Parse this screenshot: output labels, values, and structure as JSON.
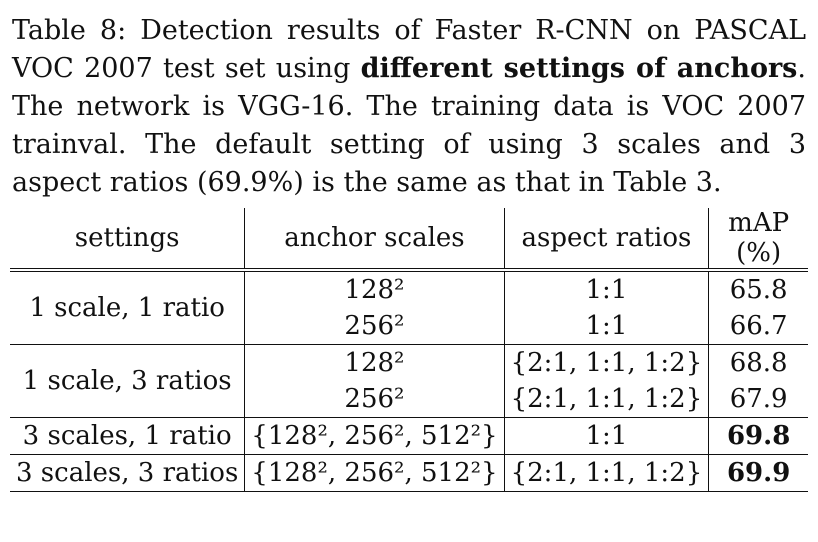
{
  "caption": {
    "label": "Table 8:",
    "text_before": "Detection results of Faster R-CNN on PASCAL VOC 2007 test set using",
    "emphasis": "different settings of anchors",
    "text_after": ". The network is VGG-16. The training data is VOC 2007 trainval. The default setting of using 3 scales and 3 aspect ratios (69.9%) is the same as that in Table 3."
  },
  "table": {
    "header": [
      "settings",
      "anchor scales",
      "aspect ratios",
      "mAP (%)"
    ],
    "groups": [
      {
        "setting": "1 scale, 1 ratio",
        "rows": [
          [
            "128²",
            "1:1",
            "65.8"
          ],
          [
            "256²",
            "1:1",
            "66.7"
          ]
        ]
      },
      {
        "setting": "1 scale, 3 ratios",
        "rows": [
          [
            "128²",
            "{2:1, 1:1, 1:2}",
            "68.8"
          ],
          [
            "256²",
            "{2:1, 1:1, 1:2}",
            "67.9"
          ]
        ]
      },
      {
        "setting": "3 scales, 1 ratio",
        "rows": [
          [
            "{128², 256², 512²}",
            "1:1",
            "69.8"
          ]
        ]
      },
      {
        "setting": "3 scales, 3 ratios",
        "rows": [
          [
            "{128², 256², 512²}",
            "{2:1, 1:1, 1:2}",
            "69.9"
          ]
        ]
      }
    ]
  }
}
